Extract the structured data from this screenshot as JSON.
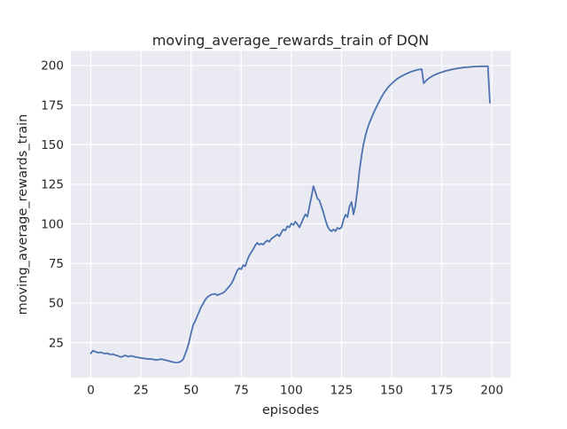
{
  "chart_data": {
    "type": "line",
    "title": "moving_average_rewards_train of DQN",
    "xlabel": "episodes",
    "ylabel": "moving_average_rewards_train",
    "x_start": 0,
    "x_step": 1,
    "values": [
      18.2,
      19.9,
      19.4,
      18.9,
      18.6,
      18.9,
      18.4,
      18.0,
      18.3,
      17.8,
      17.5,
      17.7,
      17.2,
      16.8,
      16.4,
      15.9,
      16.3,
      16.9,
      16.5,
      16.1,
      16.7,
      16.3,
      16.0,
      15.7,
      15.5,
      15.3,
      15.1,
      14.9,
      14.8,
      14.6,
      14.7,
      14.4,
      14.2,
      14.0,
      14.3,
      14.6,
      14.3,
      14.0,
      13.7,
      13.4,
      13.0,
      12.7,
      12.5,
      12.4,
      12.6,
      13.2,
      14.3,
      17.5,
      21.0,
      25.5,
      31.0,
      36.0,
      38.5,
      41.5,
      44.5,
      47.5,
      49.5,
      52.0,
      53.5,
      54.5,
      55.3,
      55.6,
      55.8,
      54.9,
      55.5,
      55.9,
      56.5,
      57.5,
      59.0,
      60.5,
      62.0,
      64.5,
      67.5,
      70.5,
      72.0,
      71.3,
      74.0,
      73.2,
      77.0,
      80.0,
      82.0,
      84.0,
      86.5,
      88.0,
      86.8,
      87.5,
      86.9,
      88.5,
      89.5,
      88.7,
      90.5,
      91.5,
      92.3,
      93.4,
      92.1,
      94.5,
      96.5,
      95.8,
      98.5,
      97.8,
      100.2,
      99.3,
      101.4,
      99.8,
      97.8,
      100.5,
      103.5,
      106.0,
      104.5,
      111.0,
      117.0,
      123.8,
      120.0,
      116.0,
      114.8,
      111.0,
      107.0,
      102.5,
      98.5,
      96.3,
      95.3,
      96.5,
      95.4,
      97.5,
      96.8,
      97.8,
      102.5,
      105.8,
      104.3,
      111.0,
      113.8,
      106.0,
      112.0,
      122.0,
      134.0,
      143.0,
      150.5,
      156.0,
      160.5,
      164.0,
      167.0,
      170.0,
      172.8,
      175.3,
      177.8,
      180.2,
      182.3,
      184.2,
      185.9,
      187.3,
      188.5,
      189.7,
      190.8,
      191.8,
      192.6,
      193.3,
      194.0,
      194.6,
      195.2,
      195.7,
      196.2,
      196.6,
      197.0,
      197.3,
      197.5,
      197.7,
      188.8,
      190.2,
      191.4,
      192.3,
      193.1,
      193.8,
      194.4,
      194.9,
      195.4,
      195.8,
      196.2,
      196.6,
      196.9,
      197.2,
      197.5,
      197.8,
      198.0,
      198.2,
      198.4,
      198.6,
      198.8,
      198.9,
      199.0,
      199.1,
      199.2,
      199.3,
      199.4,
      199.4,
      199.5,
      199.5,
      199.5,
      199.5,
      199.6,
      176.5
    ],
    "xticks": [
      0,
      25,
      50,
      75,
      100,
      125,
      150,
      175,
      200
    ],
    "yticks": [
      25,
      50,
      75,
      100,
      125,
      150,
      175,
      200
    ],
    "xlim": [
      -9.95,
      209.4
    ],
    "ylim": [
      2.9,
      209.2
    ],
    "grid": true,
    "legend": null,
    "colors": {
      "line": "#4c72b0",
      "plot_bg": "#eaeaf2",
      "fig_bg": "#ffffff",
      "grid": "#ffffff",
      "text": "#262626"
    }
  }
}
